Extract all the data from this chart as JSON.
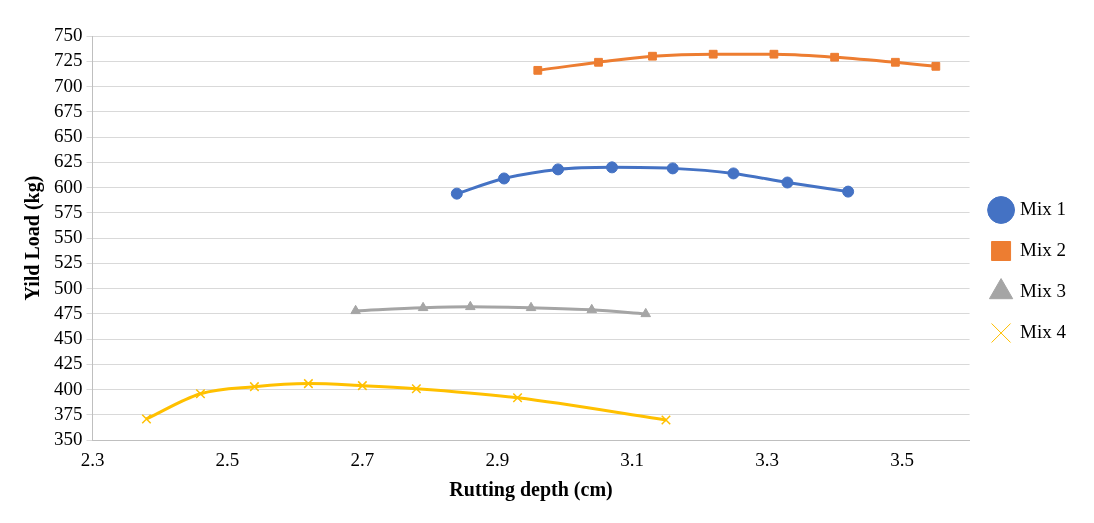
{
  "chart_data": {
    "type": "line",
    "xlabel": "Rutting depth (cm)",
    "ylabel": "Yild Load (kg)",
    "xlim": [
      2.3,
      3.6
    ],
    "xticks": [
      2.3,
      2.5,
      2.7,
      2.9,
      3.1,
      3.3,
      3.5
    ],
    "ylim": [
      350,
      750
    ],
    "yticks": [
      350,
      375,
      400,
      425,
      450,
      475,
      500,
      525,
      550,
      575,
      600,
      625,
      650,
      675,
      700,
      725,
      750
    ],
    "grid": "y",
    "legend": "right",
    "series": [
      {
        "name": "Mix 1",
        "color": "#4472c4",
        "marker": "circle",
        "x": [
          2.84,
          2.91,
          2.99,
          3.07,
          3.16,
          3.25,
          3.33,
          3.42
        ],
        "values": [
          594,
          609,
          618,
          620,
          619,
          614,
          605,
          596
        ]
      },
      {
        "name": "Mix 2",
        "color": "#ed7d31",
        "marker": "square",
        "x": [
          2.96,
          3.05,
          3.13,
          3.22,
          3.31,
          3.4,
          3.49,
          3.55
        ],
        "values": [
          716,
          724,
          730,
          732,
          732,
          729,
          724,
          720
        ]
      },
      {
        "name": "Mix 3",
        "color": "#a5a5a5",
        "marker": "triangle",
        "x": [
          2.69,
          2.79,
          2.86,
          2.95,
          3.04,
          3.12
        ],
        "values": [
          478,
          481,
          482,
          481,
          479,
          475
        ]
      },
      {
        "name": "Mix 4",
        "color": "#ffc000",
        "marker": "cross",
        "x": [
          2.38,
          2.46,
          2.54,
          2.62,
          2.7,
          2.78,
          2.93,
          3.15
        ],
        "values": [
          371,
          396,
          403,
          406,
          404,
          401,
          392,
          370
        ]
      }
    ]
  }
}
